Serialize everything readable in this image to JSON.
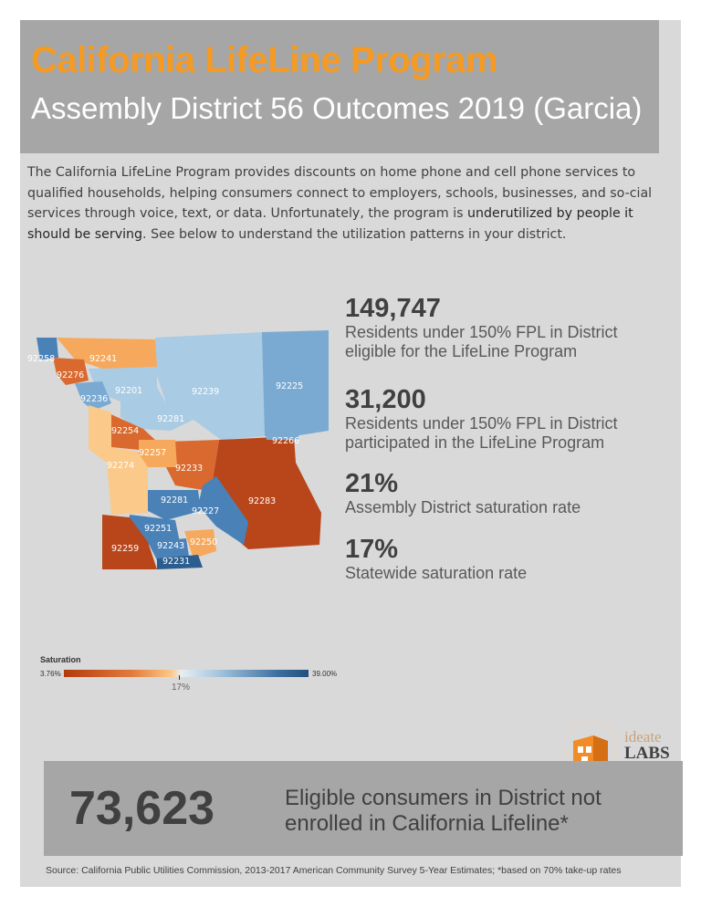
{
  "header": {
    "title": "California LifeLine Program",
    "subtitle": "Assembly District 56 Outcomes 2019 (Garcia)"
  },
  "intro": {
    "text_a": "The California LifeLine Program provides discounts on home phone and cell phone services to qualified households, helping consumers connect to employers, schools, businesses, and so-cial services through voice, text, or data. Unfortunately, the program is ",
    "text_strong": "underutilized by people it should be serving",
    "text_b": ". See below to understand the utilization patterns in your district."
  },
  "stats": [
    {
      "value": "149,747",
      "label": "Residents under 150% FPL in District eligible for the LifeLine Program"
    },
    {
      "value": "31,200",
      "label": "Residents under 150% FPL in District participated in the LifeLine Program"
    },
    {
      "value": "21%",
      "label": "Assembly District saturation rate"
    },
    {
      "value": "17%",
      "label": "Statewide saturation rate"
    }
  ],
  "map": {
    "zip_labels": [
      "92258",
      "92241",
      "92276",
      "92236",
      "92201",
      "92239",
      "92225",
      "92281",
      "92254",
      "92266",
      "92257",
      "92274",
      "92233",
      "92281",
      "92227",
      "92283",
      "92251",
      "92243",
      "92250",
      "92259",
      "92231"
    ],
    "colors": {
      "dark_orange": "#b8461a",
      "orange": "#d9692e",
      "light_orange": "#f6a95c",
      "pale_orange": "#fbc98a",
      "pale_blue": "#a9cbe4",
      "light_blue": "#7aaad2",
      "mid_blue": "#4a82b8",
      "dark_blue": "#2c5d8f"
    }
  },
  "legend": {
    "title": "Saturation",
    "min": "3.76%",
    "max": "39.00%",
    "statewide": "17%"
  },
  "logo": {
    "ideate": "ideate",
    "labs": "LABS"
  },
  "footer": {
    "big_number": "73,623",
    "message": "Eligible consumers in District not enrolled in California Lifeline*"
  },
  "source": "Source: California Public Utilities Commission, 2013-2017 American Community Survey 5-Year Estimates; *based on 70% take-up rates"
}
